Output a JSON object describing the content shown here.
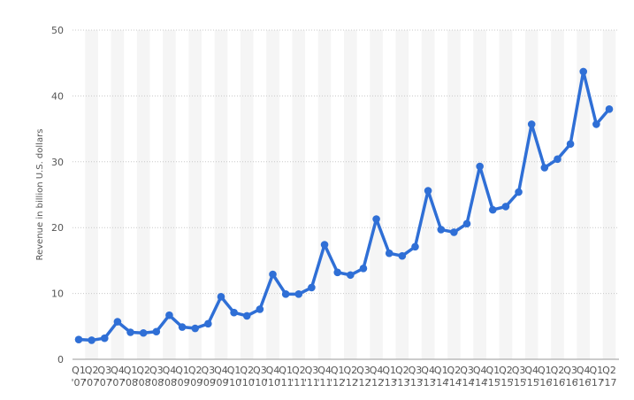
{
  "chart_data": {
    "type": "line",
    "title": "",
    "xlabel": "",
    "ylabel": "Revenue in billion U.S. dollars",
    "ylim": [
      0,
      50
    ],
    "yticks": [
      0,
      10,
      20,
      30,
      40,
      50
    ],
    "grid": "horizontal-dotted",
    "band_stripes": true,
    "line_color": "#2f6fd6",
    "x": [
      "Q1 '07",
      "Q2 '07",
      "Q3 '07",
      "Q4 '07",
      "Q1 '08",
      "Q2 '08",
      "Q3 '08",
      "Q4 '08",
      "Q1 '09",
      "Q2 '09",
      "Q3 '09",
      "Q4 '09",
      "Q1 '10",
      "Q2 '10",
      "Q3 '10",
      "Q4 '10",
      "Q1 '11",
      "Q2 '11",
      "Q3 '11",
      "Q4 '11",
      "Q1 '12",
      "Q2 '12",
      "Q3 '12",
      "Q4 '12",
      "Q1 '13",
      "Q2 '13",
      "Q3 '13",
      "Q4 '13",
      "Q1 '14",
      "Q2 '14",
      "Q3 '14",
      "Q4 '14",
      "Q1 '15",
      "Q2 '15",
      "Q3 '15",
      "Q4 '15",
      "Q1 '16",
      "Q2 '16",
      "Q3 '16",
      "Q4 '16",
      "Q1 '17",
      "Q2 '17"
    ],
    "x_tick_line1": [
      "Q1",
      "Q2",
      "Q3",
      "Q4",
      "Q1",
      "Q2",
      "Q3",
      "Q4",
      "Q1",
      "Q2",
      "Q3",
      "Q4",
      "Q1",
      "Q2",
      "Q3",
      "Q4",
      "Q1",
      "Q2",
      "Q3",
      "Q4",
      "Q1",
      "Q2",
      "Q3",
      "Q4",
      "Q1",
      "Q2",
      "Q3",
      "Q4",
      "Q1",
      "Q2",
      "Q3",
      "Q4",
      "Q1",
      "Q2",
      "Q3",
      "Q4",
      "Q1",
      "Q2",
      "Q3",
      "Q4",
      "Q1",
      "Q2"
    ],
    "x_tick_line2": [
      "'07",
      "'07",
      "'07",
      "'07",
      "'08",
      "'08",
      "'08",
      "'08",
      "'09",
      "'09",
      "'09",
      "'09",
      "'10",
      "'10",
      "'10",
      "'10",
      "'11",
      "'11",
      "'11",
      "'11",
      "'12",
      "'12",
      "'12",
      "'12",
      "'13",
      "'13",
      "'13",
      "'13",
      "'14",
      "'14",
      "'14",
      "'14",
      "'15",
      "'15",
      "'15",
      "'15",
      "'16",
      "'16",
      "'16",
      "'16",
      "'17",
      "'17"
    ],
    "series": [
      {
        "values": [
          3.0,
          2.9,
          3.2,
          5.7,
          4.1,
          4.0,
          4.2,
          6.7,
          4.9,
          4.7,
          5.4,
          9.5,
          7.1,
          6.6,
          7.6,
          12.9,
          9.9,
          9.9,
          10.9,
          17.4,
          13.2,
          12.8,
          13.8,
          21.3,
          16.1,
          15.7,
          17.1,
          25.6,
          19.7,
          19.3,
          20.6,
          29.3,
          22.7,
          23.2,
          25.4,
          35.7,
          29.1,
          30.4,
          32.7,
          43.7,
          35.7,
          38.0
        ]
      }
    ]
  }
}
